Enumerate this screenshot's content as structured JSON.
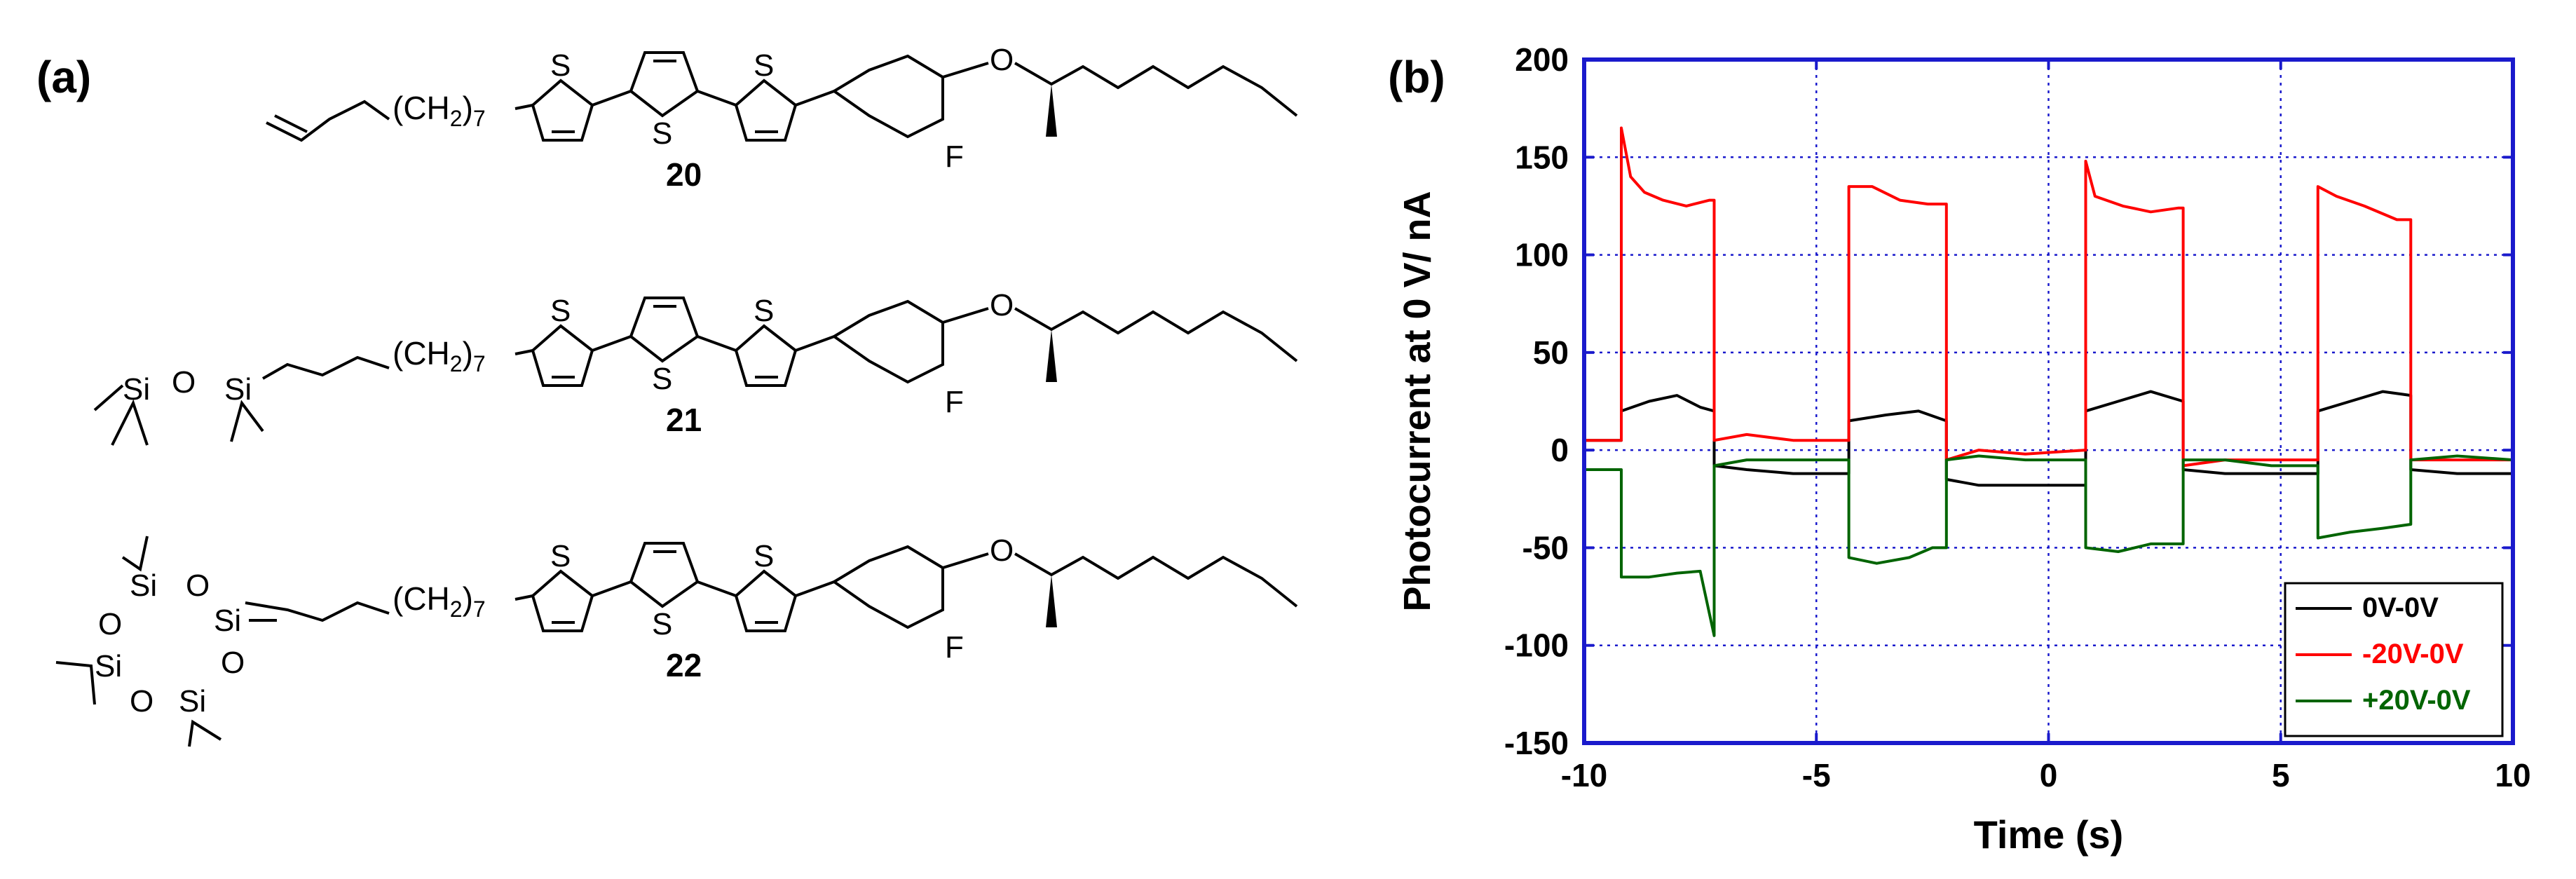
{
  "panel_a": {
    "label": "(a)",
    "compounds": [
      {
        "number": "20",
        "tail_subscript": "7",
        "fluoro": "F"
      },
      {
        "number": "21",
        "tail_subscript": "7",
        "fluoro": "F"
      },
      {
        "number": "22",
        "tail_subscript": "7",
        "fluoro": "F"
      }
    ],
    "atoms": {
      "sulfur": "S",
      "oxygen": "O",
      "silicon": "Si",
      "fluorine": "F",
      "ch2": "(CH",
      "ch2_close": ")",
      "ch2_sub": "2"
    }
  },
  "panel_b": {
    "label": "(b)"
  },
  "chart_data": {
    "type": "line",
    "xlabel": "Time (s)",
    "ylabel": "Photocurrent at 0 V/ nA",
    "xlim": [
      -10,
      10
    ],
    "ylim": [
      -150,
      200
    ],
    "xticks": [
      "-10",
      "-5",
      "0",
      "5",
      "10"
    ],
    "yticks": [
      "-150",
      "-100",
      "-50",
      "0",
      "50",
      "100",
      "150",
      "200"
    ],
    "grid": true,
    "legend_position": "bottom-right",
    "series": [
      {
        "name": "0V-0V",
        "color": "#000000",
        "points": [
          [
            -10,
            5
          ],
          [
            -9.2,
            5
          ],
          [
            -9.2,
            20
          ],
          [
            -8.6,
            25
          ],
          [
            -8.0,
            28
          ],
          [
            -7.5,
            22
          ],
          [
            -7.2,
            20
          ],
          [
            -7.2,
            -8
          ],
          [
            -6.5,
            -10
          ],
          [
            -5.5,
            -12
          ],
          [
            -4.3,
            -12
          ],
          [
            -4.3,
            15
          ],
          [
            -3.5,
            18
          ],
          [
            -2.8,
            20
          ],
          [
            -2.2,
            15
          ],
          [
            -2.2,
            -15
          ],
          [
            -1.5,
            -18
          ],
          [
            -0.5,
            -18
          ],
          [
            0.8,
            -18
          ],
          [
            0.8,
            20
          ],
          [
            1.5,
            25
          ],
          [
            2.2,
            30
          ],
          [
            2.9,
            25
          ],
          [
            2.9,
            -10
          ],
          [
            3.8,
            -12
          ],
          [
            4.8,
            -12
          ],
          [
            5.8,
            -12
          ],
          [
            5.8,
            20
          ],
          [
            6.5,
            25
          ],
          [
            7.2,
            30
          ],
          [
            7.8,
            28
          ],
          [
            7.8,
            -10
          ],
          [
            8.8,
            -12
          ],
          [
            10,
            -12
          ]
        ]
      },
      {
        "name": "-20V-0V",
        "color": "#ff0000",
        "points": [
          [
            -10,
            5
          ],
          [
            -9.2,
            5
          ],
          [
            -9.2,
            165
          ],
          [
            -9.0,
            140
          ],
          [
            -8.7,
            132
          ],
          [
            -8.3,
            128
          ],
          [
            -7.8,
            125
          ],
          [
            -7.3,
            128
          ],
          [
            -7.2,
            128
          ],
          [
            -7.2,
            5
          ],
          [
            -6.5,
            8
          ],
          [
            -5.5,
            5
          ],
          [
            -4.3,
            5
          ],
          [
            -4.3,
            135
          ],
          [
            -3.8,
            135
          ],
          [
            -3.2,
            128
          ],
          [
            -2.6,
            126
          ],
          [
            -2.2,
            126
          ],
          [
            -2.2,
            -5
          ],
          [
            -1.5,
            0
          ],
          [
            -0.5,
            -2
          ],
          [
            0.8,
            0
          ],
          [
            0.8,
            148
          ],
          [
            1.0,
            130
          ],
          [
            1.6,
            125
          ],
          [
            2.2,
            122
          ],
          [
            2.8,
            124
          ],
          [
            2.9,
            124
          ],
          [
            2.9,
            -8
          ],
          [
            3.8,
            -5
          ],
          [
            4.8,
            -5
          ],
          [
            5.8,
            -5
          ],
          [
            5.8,
            135
          ],
          [
            6.2,
            130
          ],
          [
            6.8,
            125
          ],
          [
            7.5,
            118
          ],
          [
            7.8,
            118
          ],
          [
            7.8,
            -5
          ],
          [
            8.8,
            -5
          ],
          [
            10,
            -5
          ]
        ]
      },
      {
        "name": "+20V-0V",
        "color": "#006400",
        "points": [
          [
            -10,
            -10
          ],
          [
            -9.2,
            -10
          ],
          [
            -9.2,
            -65
          ],
          [
            -8.6,
            -65
          ],
          [
            -8.0,
            -63
          ],
          [
            -7.5,
            -62
          ],
          [
            -7.2,
            -95
          ],
          [
            -7.2,
            -8
          ],
          [
            -6.5,
            -5
          ],
          [
            -5.5,
            -5
          ],
          [
            -4.3,
            -5
          ],
          [
            -4.3,
            -55
          ],
          [
            -3.7,
            -58
          ],
          [
            -3.0,
            -55
          ],
          [
            -2.5,
            -50
          ],
          [
            -2.2,
            -50
          ],
          [
            -2.2,
            -5
          ],
          [
            -1.5,
            -3
          ],
          [
            -0.5,
            -5
          ],
          [
            0.8,
            -5
          ],
          [
            0.8,
            -50
          ],
          [
            1.5,
            -52
          ],
          [
            2.2,
            -48
          ],
          [
            2.9,
            -48
          ],
          [
            2.9,
            -5
          ],
          [
            3.8,
            -5
          ],
          [
            4.8,
            -8
          ],
          [
            5.8,
            -8
          ],
          [
            5.8,
            -45
          ],
          [
            6.5,
            -42
          ],
          [
            7.2,
            -40
          ],
          [
            7.8,
            -38
          ],
          [
            7.8,
            -5
          ],
          [
            8.8,
            -3
          ],
          [
            10,
            -5
          ]
        ]
      }
    ]
  }
}
